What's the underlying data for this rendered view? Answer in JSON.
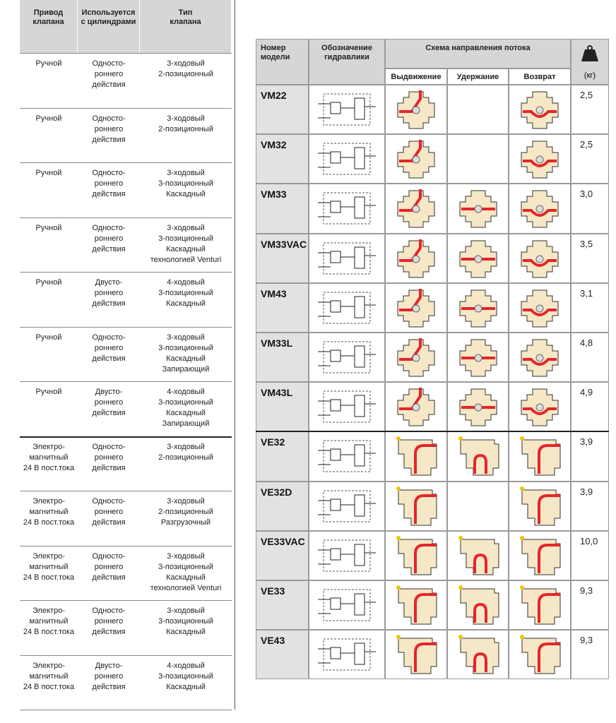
{
  "left_table": {
    "headers": [
      [
        "Привод",
        "клапана"
      ],
      [
        "Используется",
        "с цилиндрами"
      ],
      [
        "Тип",
        "клапана"
      ]
    ],
    "rows": [
      [
        [
          "Ручной"
        ],
        [
          "Односто-",
          "роннего",
          "действия"
        ],
        [
          "3-ходовый",
          "2-позиционный"
        ]
      ],
      [
        [
          "Ручной"
        ],
        [
          "Односто-",
          "роннего",
          "действия"
        ],
        [
          "3-ходовый",
          "2-позиционный"
        ]
      ],
      [
        [
          "Ручной"
        ],
        [
          "Односто-",
          "роннего",
          "действия"
        ],
        [
          "3-ходовый",
          "3-позиционный",
          "Каскадный"
        ]
      ],
      [
        [
          "Ручной"
        ],
        [
          "Односто-",
          "роннего",
          "действия"
        ],
        [
          "3-ходовый",
          "3-позиционный",
          "Каскадный",
          "технологией Venturi"
        ]
      ],
      [
        [
          "Ручной"
        ],
        [
          "Двусто-",
          "роннего",
          "действия"
        ],
        [
          "4-ходовый",
          "3-позиционный",
          "Каскадный"
        ]
      ],
      [
        [
          "Ручной"
        ],
        [
          "Односто-",
          "роннего",
          "действия"
        ],
        [
          "3-ходовый",
          "3-позиционный",
          "Каскадный",
          "Запирающий"
        ]
      ],
      [
        [
          "Ручной"
        ],
        [
          "Двусто-",
          "роннего",
          "действия"
        ],
        [
          "4-ходовый",
          "3-позиционный",
          "Каскадный",
          "Запирающий"
        ]
      ],
      [
        [
          "Электро-",
          "магнитный",
          "24 В пост.тока"
        ],
        [
          "Односто-",
          "роннего",
          "действия"
        ],
        [
          "3-ходовый",
          "2-позиционный"
        ]
      ],
      [
        [
          "Электро-",
          "магнитный",
          "24 В пост.тока"
        ],
        [
          "Односто-",
          "роннего",
          "действия"
        ],
        [
          "3-ходовый",
          "2-позиционный",
          "Разгрузочный"
        ]
      ],
      [
        [
          "Электро-",
          "магнитный",
          "24 В пост.тока"
        ],
        [
          "Односто-",
          "роннего",
          "действия"
        ],
        [
          "3-ходовый",
          "3-позиционный",
          "Каскадный",
          "технологией Venturi"
        ]
      ],
      [
        [
          "Электро-",
          "магнитный",
          "24 В пост.тока"
        ],
        [
          "Односто-",
          "роннего",
          "действия"
        ],
        [
          "3-ходовый",
          "3-позиционный",
          "Каскадный"
        ]
      ],
      [
        [
          "Электро-",
          "магнитный",
          "24 В пост.тока"
        ],
        [
          "Двусто-",
          "роннего",
          "действия"
        ],
        [
          "4-ходовый",
          "3-позиционный",
          "Каскадный"
        ]
      ]
    ]
  },
  "right_table": {
    "model_header": [
      "Номер",
      "модели"
    ],
    "hydraulic_header": [
      "Обозначение",
      "гидравлики"
    ],
    "flow_header": "Схема направления потока",
    "flow_subheaders": [
      "Выдвижение",
      "Удержание",
      "Возврат"
    ],
    "weight_unit": "(кг)",
    "rows": [
      {
        "model": "VM22",
        "weight": "2,5"
      },
      {
        "model": "VM32",
        "weight": "2,5"
      },
      {
        "model": "VM33",
        "weight": "3,0"
      },
      {
        "model": "VM33VAC",
        "weight": "3,5"
      },
      {
        "model": "VM43",
        "weight": "3,1"
      },
      {
        "model": "VM33L",
        "weight": "4,8"
      },
      {
        "model": "VM43L",
        "weight": "4,9"
      },
      {
        "model": "VE32",
        "weight": "3,9"
      },
      {
        "model": "VE32D",
        "weight": "3,9"
      },
      {
        "model": "VE33VAC",
        "weight": "10,0"
      },
      {
        "model": "VE33",
        "weight": "9,3"
      },
      {
        "model": "VE43",
        "weight": "9,3"
      }
    ]
  }
}
